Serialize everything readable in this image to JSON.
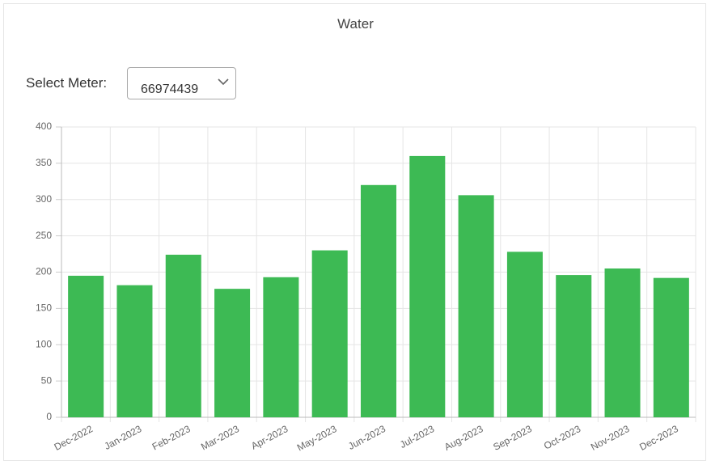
{
  "meter_select": {
    "label": "Select Meter:",
    "value": "66974439"
  },
  "chart_data": {
    "type": "bar",
    "title": "Water",
    "categories": [
      "Dec-2022",
      "Jan-2023",
      "Feb-2023",
      "Mar-2023",
      "Apr-2023",
      "May-2023",
      "Jun-2023",
      "Jul-2023",
      "Aug-2023",
      "Sep-2023",
      "Oct-2023",
      "Nov-2023",
      "Dec-2023"
    ],
    "values": [
      195,
      182,
      224,
      177,
      193,
      230,
      320,
      360,
      306,
      228,
      196,
      205,
      192
    ],
    "color": "#3dba54",
    "ylim": [
      0,
      400
    ],
    "yticks": [
      0,
      50,
      100,
      150,
      200,
      250,
      300,
      350,
      400
    ],
    "grid": true
  }
}
